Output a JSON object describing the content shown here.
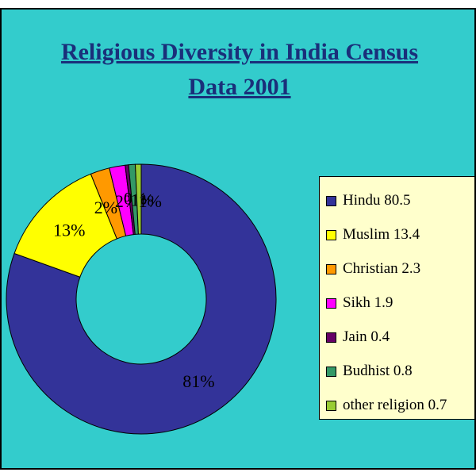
{
  "chart_data": {
    "type": "pie",
    "title_lines": [
      "Religious Diversity in India Census",
      "Data 2001"
    ],
    "series": [
      {
        "label": "Hindu 80.5",
        "value": 80.5,
        "color": "#333399",
        "data_label": "81%"
      },
      {
        "label": "Muslim 13.4",
        "value": 13.4,
        "color": "#ffff00",
        "data_label": "13%"
      },
      {
        "label": "Christian 2.3",
        "value": 2.3,
        "color": "#ff9900",
        "data_label": "2%"
      },
      {
        "label": "Sikh 1.9",
        "value": 1.9,
        "color": "#ff00ff",
        "data_label": "2%"
      },
      {
        "label": "Jain 0.4",
        "value": 0.4,
        "color": "#660066",
        "data_label": "0%"
      },
      {
        "label": "Budhist 0.8",
        "value": 0.8,
        "color": "#339966",
        "data_label": "1%"
      },
      {
        "label": "other religion 0.7",
        "value": 0.7,
        "color": "#99cc33",
        "data_label": "1%"
      }
    ],
    "legend_position": "right"
  }
}
